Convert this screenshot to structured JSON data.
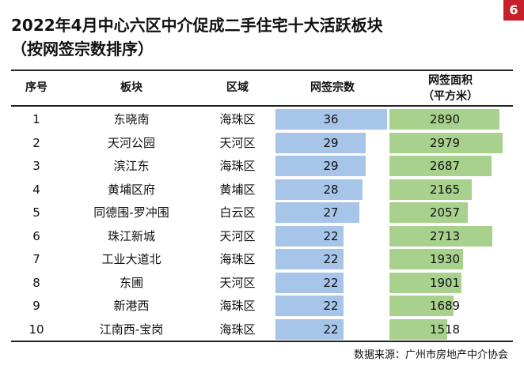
{
  "page_number": "6",
  "title": {
    "line1": "2022年4月中心六区中介促成二手住宅十大活跃板块",
    "line2": "（按网签宗数排序）"
  },
  "colors": {
    "deals_bar": "#a6c5e8",
    "area_bar": "#a9d18e",
    "page_badge": "#c8202a"
  },
  "chart_data": {
    "type": "table",
    "columns": [
      "序号",
      "板块",
      "区域",
      "网签宗数",
      "网签面积"
    ],
    "area_unit": "（平方米）",
    "deals_max": 36,
    "area_max": 2979,
    "rows": [
      {
        "rank": "1",
        "block": "东晓南",
        "district": "海珠区",
        "deals": 36,
        "area": 2890
      },
      {
        "rank": "2",
        "block": "天河公园",
        "district": "天河区",
        "deals": 29,
        "area": 2979
      },
      {
        "rank": "3",
        "block": "滨江东",
        "district": "海珠区",
        "deals": 29,
        "area": 2687
      },
      {
        "rank": "4",
        "block": "黄埔区府",
        "district": "黄埔区",
        "deals": 28,
        "area": 2165
      },
      {
        "rank": "5",
        "block": "同德围-罗冲围",
        "district": "白云区",
        "deals": 27,
        "area": 2057
      },
      {
        "rank": "6",
        "block": "珠江新城",
        "district": "天河区",
        "deals": 22,
        "area": 2713
      },
      {
        "rank": "7",
        "block": "工业大道北",
        "district": "海珠区",
        "deals": 22,
        "area": 1930
      },
      {
        "rank": "8",
        "block": "东圃",
        "district": "天河区",
        "deals": 22,
        "area": 1901
      },
      {
        "rank": "9",
        "block": "新港西",
        "district": "海珠区",
        "deals": 22,
        "area": 1689
      },
      {
        "rank": "10",
        "block": "江南西-宝岗",
        "district": "海珠区",
        "deals": 22,
        "area": 1518
      }
    ]
  },
  "source": "数据来源：广州市房地产中介协会"
}
